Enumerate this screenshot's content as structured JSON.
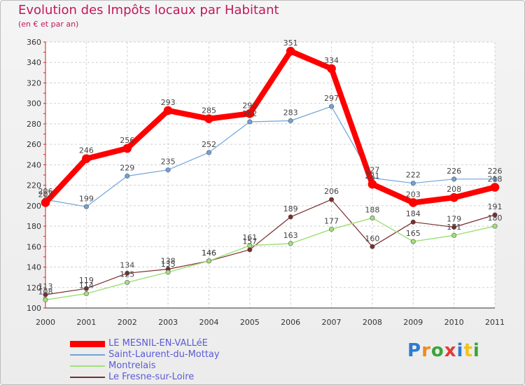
{
  "title": "Evolution des Impôts locaux par Habitant",
  "subtitle": "(en € et par an)",
  "logo_text": "Proxiti",
  "chart_data": {
    "type": "line",
    "title": "Evolution des Impôts locaux par Habitant",
    "subtitle": "(en € et par an)",
    "xlabel": "",
    "ylabel": "",
    "x": [
      "2000",
      "2001",
      "2002",
      "2003",
      "2004",
      "2005",
      "2006",
      "2007",
      "2008",
      "2009",
      "2010",
      "2011"
    ],
    "ylim": [
      100,
      360
    ],
    "yticks": [
      100,
      120,
      140,
      160,
      180,
      200,
      220,
      240,
      260,
      280,
      300,
      320,
      340,
      360
    ],
    "grid": true,
    "legend": "bottom-left",
    "series": [
      {
        "name": "LE MESNIL-EN-VALLéE",
        "values": [
          203,
          246,
          256,
          293,
          285,
          290,
          351,
          334,
          221,
          203,
          208,
          218
        ],
        "color": "#ff0000",
        "width": 8
      },
      {
        "name": "Saint-Laurent-du-Mottay",
        "values": [
          206,
          199,
          229,
          235,
          252,
          282,
          283,
          297,
          227,
          222,
          226,
          226
        ],
        "color": "#6fa3d8",
        "width": 1.2
      },
      {
        "name": "Montrelais",
        "values": [
          108,
          114,
          125,
          135,
          146,
          161,
          163,
          177,
          188,
          165,
          171,
          180
        ],
        "color": "#a3e07a",
        "width": 1.5
      },
      {
        "name": "Le Fresne-sur-Loire",
        "values": [
          113,
          119,
          134,
          138,
          146,
          157,
          189,
          206,
          160,
          184,
          179,
          191
        ],
        "color": "#7a2d2d",
        "width": 1.2
      }
    ]
  }
}
